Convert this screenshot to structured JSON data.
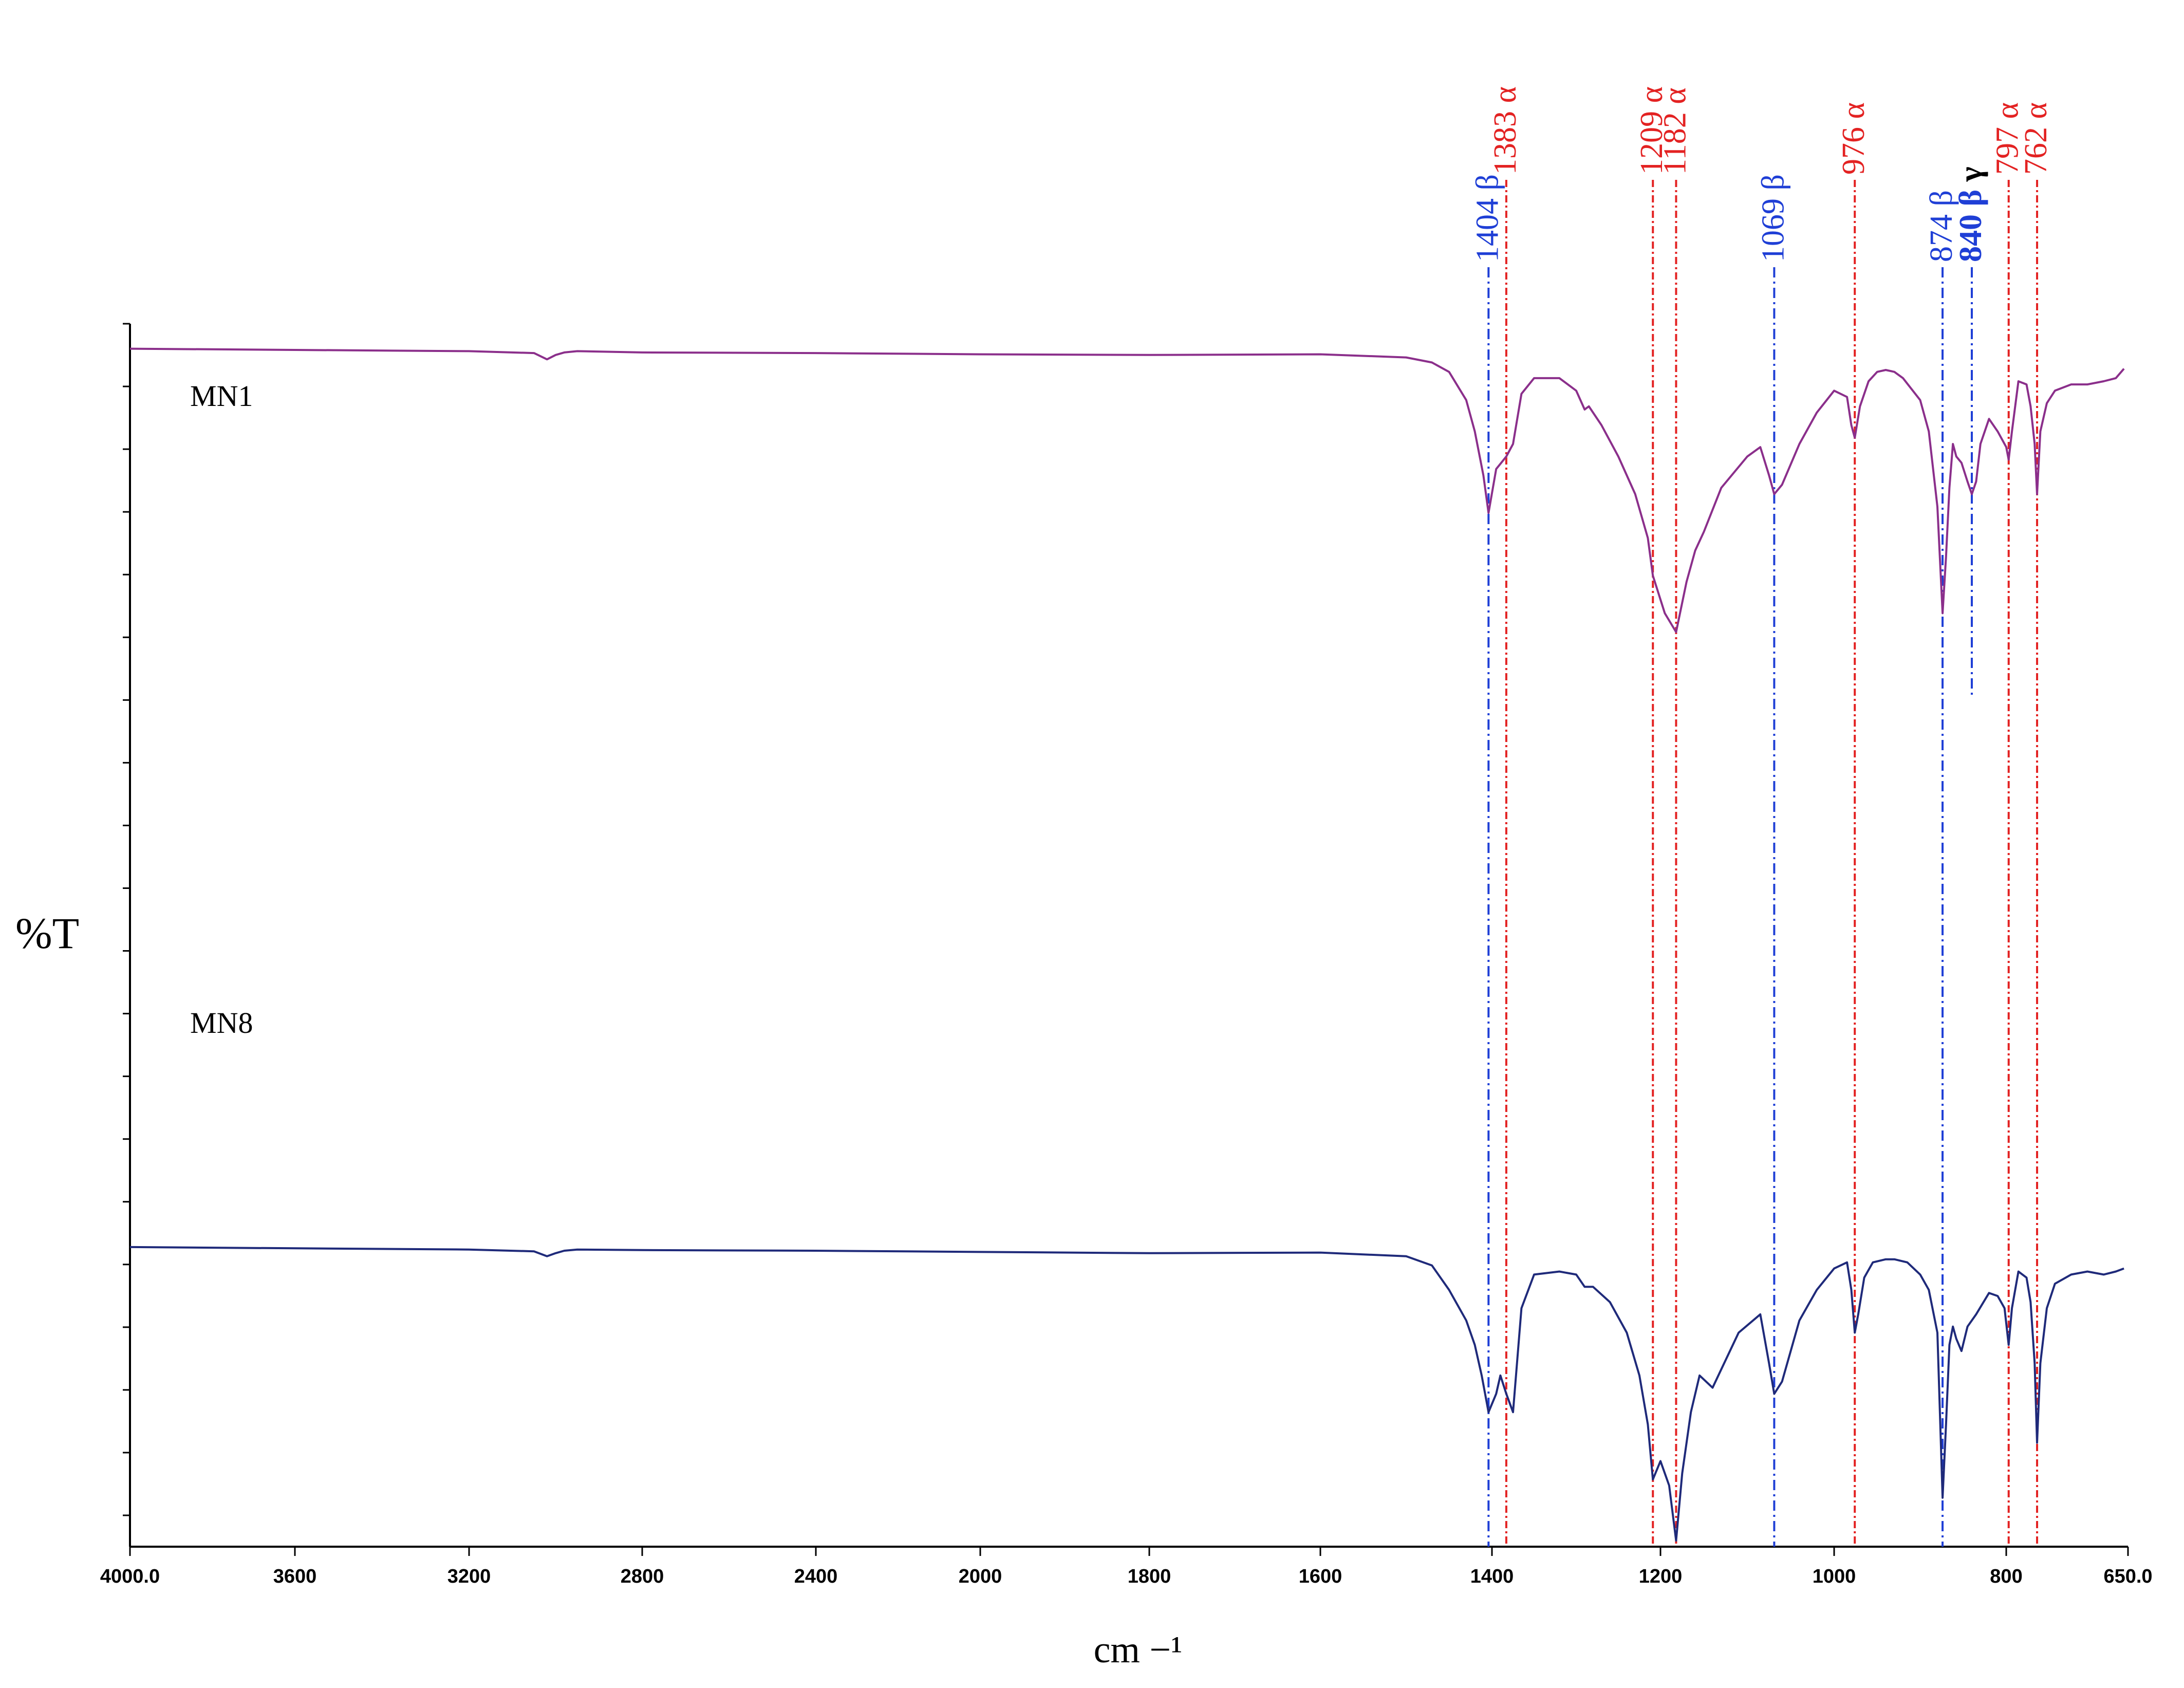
{
  "chart_data": {
    "type": "line",
    "title": "",
    "xlabel": "cm −¹",
    "ylabel": "%T",
    "xlim": [
      4000,
      650
    ],
    "x_tick_labels": [
      "4000.0",
      "3600",
      "3200",
      "2800",
      "2400",
      "2000",
      "1800",
      "1600",
      "1400",
      "1200",
      "1000",
      "800",
      "650.0"
    ],
    "x_tick_values": [
      4000,
      3600,
      3200,
      2800,
      2400,
      2000,
      1800,
      1600,
      1400,
      1200,
      1000,
      800,
      650
    ],
    "ylim": [
      0,
      100
    ],
    "grid": false,
    "series": [
      {
        "name": "MN1",
        "color": "#8b2f8b",
        "x": [
          4000,
          3600,
          3200,
          3050,
          3020,
          3000,
          2980,
          2950,
          2800,
          2400,
          2000,
          1800,
          1600,
          1500,
          1470,
          1450,
          1430,
          1420,
          1410,
          1404,
          1395,
          1383,
          1375,
          1365,
          1350,
          1320,
          1300,
          1290,
          1285,
          1270,
          1250,
          1230,
          1215,
          1209,
          1195,
          1182,
          1170,
          1160,
          1150,
          1130,
          1100,
          1085,
          1075,
          1069,
          1060,
          1040,
          1020,
          1000,
          985,
          980,
          976,
          970,
          960,
          950,
          940,
          930,
          920,
          900,
          890,
          880,
          874,
          870,
          866,
          862,
          858,
          852,
          845,
          840,
          835,
          830,
          820,
          810,
          800,
          797,
          793,
          785,
          775,
          770,
          765,
          762,
          758,
          750,
          740,
          720,
          700,
          680,
          665,
          655
        ],
        "y": [
          95.2,
          95.0,
          94.8,
          94.5,
          93.5,
          94.2,
          94.6,
          94.8,
          94.6,
          94.5,
          94.3,
          94.2,
          94.3,
          93.8,
          93.0,
          91.5,
          87.0,
          82.0,
          75.0,
          69.0,
          76.0,
          78.0,
          80.0,
          88.0,
          90.5,
          90.5,
          88.5,
          85.5,
          86.0,
          83.0,
          78.0,
          72.0,
          65.0,
          59.0,
          53.0,
          50.0,
          58.0,
          63.0,
          66.0,
          73.0,
          78.0,
          79.5,
          75.0,
          72.0,
          73.5,
          80.0,
          85.0,
          88.5,
          87.5,
          83.0,
          81.0,
          86.0,
          90.0,
          91.5,
          91.8,
          91.5,
          90.5,
          87.0,
          82.0,
          70.0,
          53.0,
          62.0,
          73.0,
          80.0,
          78.0,
          77.0,
          74.0,
          72.0,
          74.0,
          80.0,
          84.0,
          82.0,
          79.5,
          77.5,
          82.0,
          90.0,
          89.5,
          86.0,
          80.0,
          72.0,
          82.0,
          86.5,
          88.5,
          89.5,
          89.5,
          90.0,
          90.5,
          92.0
        ]
      },
      {
        "name": "MN8",
        "color": "#1f2a7a",
        "x": [
          4000,
          3600,
          3200,
          3050,
          3020,
          3000,
          2980,
          2950,
          2800,
          2400,
          2000,
          1800,
          1600,
          1500,
          1470,
          1450,
          1430,
          1420,
          1412,
          1404,
          1395,
          1390,
          1383,
          1375,
          1365,
          1350,
          1320,
          1300,
          1290,
          1280,
          1260,
          1240,
          1225,
          1215,
          1209,
          1200,
          1190,
          1182,
          1175,
          1165,
          1155,
          1140,
          1110,
          1085,
          1075,
          1069,
          1060,
          1040,
          1020,
          1000,
          985,
          980,
          976,
          972,
          965,
          955,
          940,
          930,
          915,
          900,
          890,
          880,
          874,
          870,
          866,
          862,
          858,
          852,
          845,
          835,
          820,
          810,
          802,
          797,
          793,
          785,
          775,
          770,
          765,
          762,
          758,
          750,
          740,
          720,
          700,
          680,
          665,
          655
        ],
        "y": [
          49.0,
          48.8,
          48.6,
          48.3,
          47.5,
          48.0,
          48.4,
          48.6,
          48.5,
          48.4,
          48.2,
          48.0,
          48.1,
          47.5,
          46.0,
          42.0,
          37.0,
          33.0,
          28.0,
          22.0,
          25.0,
          28.0,
          25.0,
          22.0,
          39.0,
          44.5,
          45.0,
          44.5,
          42.5,
          42.5,
          40.0,
          35.0,
          28.0,
          20.0,
          11.0,
          14.0,
          10.0,
          1.0,
          12.0,
          22.0,
          28.0,
          26.0,
          35.0,
          38.0,
          30.0,
          25.0,
          27.0,
          37.0,
          42.0,
          45.5,
          46.5,
          42.0,
          35.0,
          38.0,
          44.0,
          46.5,
          47.0,
          47.0,
          46.5,
          44.5,
          42.0,
          35.0,
          8.0,
          20.0,
          33.0,
          36.0,
          34.0,
          32.0,
          36.0,
          38.0,
          41.5,
          41.0,
          39.0,
          33.0,
          39.0,
          45.0,
          44.0,
          40.0,
          30.0,
          17.0,
          30.0,
          39.0,
          43.0,
          44.5,
          45.0,
          44.5,
          45.0,
          45.5
        ]
      }
    ],
    "series_labels": [
      "MN1",
      "MN8"
    ],
    "annotations": [
      {
        "x": 1404,
        "label": "1404 β",
        "color": "#1f3fd6",
        "bold": false
      },
      {
        "x": 1383,
        "label": "1383 α",
        "color": "#e32222",
        "bold": false
      },
      {
        "x": 1209,
        "label": "1209 α",
        "color": "#e32222",
        "bold": false
      },
      {
        "x": 1182,
        "label": "1182 α",
        "color": "#e32222",
        "bold": false
      },
      {
        "x": 1069,
        "label": "1069 β",
        "color": "#1f3fd6",
        "bold": false
      },
      {
        "x": 976,
        "label": "976 α",
        "color": "#e32222",
        "bold": false
      },
      {
        "x": 874,
        "label": "874 β",
        "color": "#1f3fd6",
        "bold": false
      },
      {
        "x": 840,
        "label": "840 β",
        "color": "#1f3fd6",
        "bold": true,
        "extra": "γ",
        "extra_color": "#000000"
      },
      {
        "x": 797,
        "label": "797 α",
        "color": "#e32222",
        "bold": false
      },
      {
        "x": 762,
        "label": "762 α",
        "color": "#e32222",
        "bold": false
      }
    ]
  }
}
